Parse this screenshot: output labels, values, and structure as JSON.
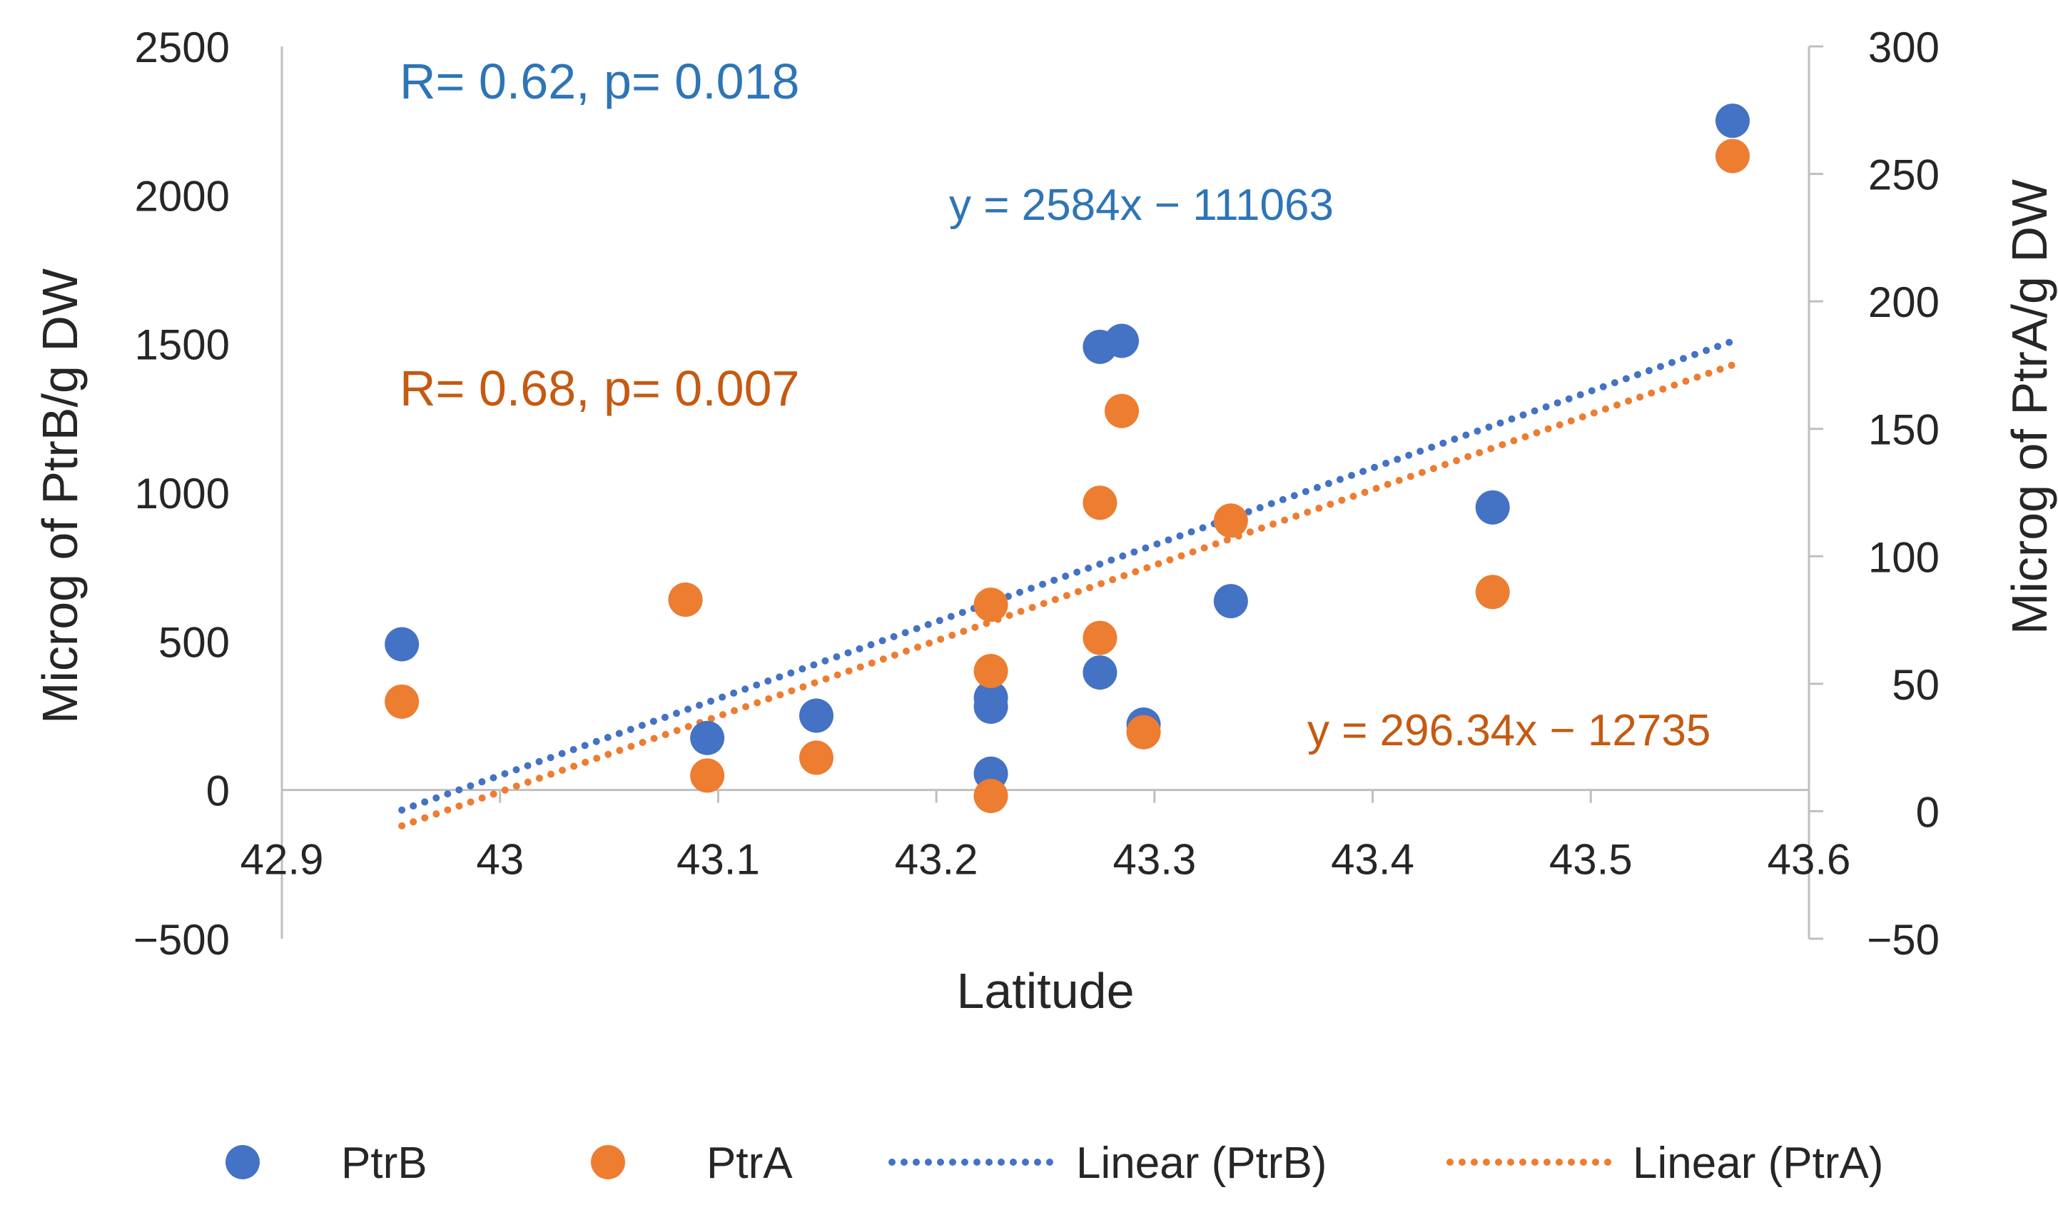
{
  "chart_data": {
    "type": "scatter",
    "xlabel": "Latitude",
    "ylabel_left": "Microg of PtrB/g DW",
    "ylabel_right": "Microg of PtrA/g DW",
    "xlim": [
      42.9,
      43.6
    ],
    "ylim_left": [
      -500,
      2500
    ],
    "ylim_right": [
      -50,
      300
    ],
    "x_ticks": [
      "42.9",
      "43",
      "43.1",
      "43.2",
      "43.3",
      "43.4",
      "43.5",
      "43.6"
    ],
    "y_left_ticks": [
      "2500",
      "2000",
      "1500",
      "1000",
      "500",
      "0",
      "−500"
    ],
    "y_right_ticks": [
      "300",
      "250",
      "200",
      "150",
      "100",
      "50",
      "0",
      "−50"
    ],
    "colors": {
      "PtrB": "#4472C4",
      "PtrA": "#ED7D31"
    },
    "series": [
      {
        "name": "PtrB",
        "axis": "left",
        "x": [
          42.955,
          43.085,
          43.095,
          43.145,
          43.225,
          43.225,
          43.225,
          43.275,
          43.275,
          43.285,
          43.295,
          43.335,
          43.455,
          43.565
        ],
        "y": [
          490,
          640,
          175,
          250,
          280,
          310,
          55,
          395,
          1490,
          1510,
          220,
          635,
          950,
          2250
        ]
      },
      {
        "name": "PtrA",
        "axis": "right",
        "x": [
          42.955,
          43.085,
          43.095,
          43.145,
          43.225,
          43.225,
          43.225,
          43.275,
          43.275,
          43.285,
          43.295,
          43.335,
          43.455,
          43.565
        ],
        "y": [
          43,
          83,
          14,
          21,
          81,
          55,
          6,
          68,
          121,
          157,
          31,
          114,
          86,
          257
        ]
      }
    ],
    "trendlines": [
      {
        "name": "Linear (PtrB)",
        "axis": "left",
        "slope": 2584,
        "intercept": -111063,
        "x_range": [
          42.955,
          43.565
        ]
      },
      {
        "name": "Linear (PtrA)",
        "axis": "right",
        "slope": 296.34,
        "intercept": -12735,
        "x_range": [
          42.955,
          43.565
        ]
      }
    ],
    "annotations": {
      "ptrb_stats": "R= 0.62, p= 0.018",
      "ptra_stats": "R= 0.68, p= 0.007",
      "ptrb_equation": "y = 2584x − 111063",
      "ptra_equation": "y = 296.34x − 12735"
    },
    "legend": [
      "PtrB",
      "PtrA",
      "Linear (PtrB)",
      "Linear (PtrA)"
    ],
    "legend_position": "bottom"
  }
}
